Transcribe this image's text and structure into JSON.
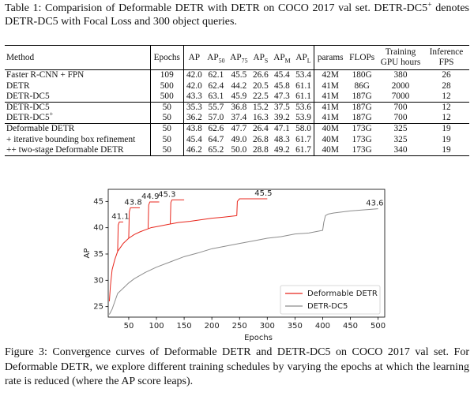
{
  "table_caption": {
    "before": "Table 1: Comparision of Deformable DETR with DETR on COCO 2017 val set.  DETR-DC5",
    "sup": "+",
    "after": " denotes DETR-DC5 with Focal Loss and 300 object queries."
  },
  "table": {
    "header": [
      "Method",
      "Epochs",
      "AP",
      {
        "text": "AP",
        "sub": "50"
      },
      {
        "text": "AP",
        "sub": "75"
      },
      {
        "text": "AP",
        "sub": "S"
      },
      {
        "text": "AP",
        "sub": "M"
      },
      {
        "text": "AP",
        "sub": "L"
      },
      "params",
      "FLOPs",
      "Training GPU hours",
      "Inference FPS"
    ],
    "groups": [
      [
        [
          "Faster R-CNN + FPN",
          "109",
          "42.0",
          "62.1",
          "45.5",
          "26.6",
          "45.4",
          "53.4",
          "42M",
          "180G",
          "380",
          "26"
        ],
        [
          "DETR",
          "500",
          "42.0",
          "62.4",
          "44.2",
          "20.5",
          "45.8",
          "61.1",
          "41M",
          "86G",
          "2000",
          "28"
        ],
        [
          "DETR-DC5",
          "500",
          "43.3",
          "63.1",
          "45.9",
          "22.5",
          "47.3",
          "61.1",
          "41M",
          "187G",
          "7000",
          "12"
        ]
      ],
      [
        [
          "DETR-DC5",
          "50",
          "35.3",
          "55.7",
          "36.8",
          "15.2",
          "37.5",
          "53.6",
          "41M",
          "187G",
          "700",
          "12"
        ],
        [
          {
            "text": "DETR-DC5",
            "sup": "+"
          },
          "50",
          "36.2",
          "57.0",
          "37.4",
          "16.3",
          "39.2",
          "53.9",
          "41M",
          "187G",
          "700",
          "12"
        ]
      ],
      [
        [
          "Deformable DETR",
          "50",
          "43.8",
          "62.6",
          "47.7",
          "26.4",
          "47.1",
          "58.0",
          "40M",
          "173G",
          "325",
          "19"
        ],
        [
          "+ iterative bounding box refinement",
          "50",
          "45.4",
          "64.7",
          "49.0",
          "26.8",
          "48.3",
          "61.7",
          "40M",
          "173G",
          "325",
          "19"
        ],
        [
          "++ two-stage Deformable DETR",
          "50",
          "46.2",
          "65.2",
          "50.0",
          "28.8",
          "49.2",
          "61.7",
          "40M",
          "173G",
          "340",
          "19"
        ]
      ]
    ]
  },
  "chart_data": {
    "type": "line",
    "xlabel": "Epochs",
    "ylabel": "AP",
    "xlim": [
      13,
      512
    ],
    "ylim": [
      23,
      47.3
    ],
    "xticks": [
      50,
      100,
      150,
      200,
      250,
      300,
      350,
      400,
      450,
      500
    ],
    "yticks": [
      25,
      30,
      35,
      40,
      45
    ],
    "legend": "lower right",
    "series": [
      {
        "name": "Deformable DETR",
        "color": "#e8261c",
        "x": [
          15,
          17,
          20,
          25,
          30,
          40,
          50,
          60,
          70,
          80,
          90,
          100,
          120,
          140,
          160,
          180,
          200,
          220,
          245,
          null,
          30,
          31,
          33,
          40,
          null,
          50,
          51,
          53,
          70,
          null,
          85,
          86,
          88,
          105,
          null,
          125,
          126,
          128,
          150,
          null,
          245,
          246,
          250,
          300
        ],
        "values": [
          26,
          29,
          32,
          34,
          35.5,
          37,
          38,
          38.7,
          39.2,
          39.6,
          40,
          40.2,
          40.6,
          41,
          41.2,
          41.5,
          41.8,
          42,
          42.3,
          null,
          35.5,
          40.5,
          41.1,
          41.1,
          null,
          38,
          43,
          43.8,
          43.8,
          null,
          39.9,
          44.3,
          44.9,
          44.9,
          null,
          40.7,
          44.8,
          45.3,
          45.3,
          null,
          42.3,
          45,
          45.5,
          45.5
        ]
      },
      {
        "name": "DETR-DC5",
        "color": "#8c8c8c",
        "x": [
          15,
          20,
          25,
          30,
          40,
          50,
          60,
          80,
          100,
          125,
          150,
          175,
          200,
          225,
          250,
          275,
          300,
          325,
          350,
          375,
          400,
          402,
          405,
          410,
          420,
          450,
          475,
          500
        ],
        "values": [
          23.5,
          24.5,
          26,
          27.5,
          28.5,
          29.5,
          30.3,
          31.5,
          32.5,
          33.5,
          34.5,
          35.2,
          36,
          36.5,
          37,
          37.5,
          38,
          38.3,
          38.8,
          39,
          39.5,
          41,
          42.3,
          42.6,
          42.8,
          43.2,
          43.4,
          43.6
        ]
      }
    ],
    "annotations": [
      {
        "x": 35,
        "value": 41.1
      },
      {
        "x": 58,
        "value": 43.8
      },
      {
        "x": 89,
        "value": 44.9
      },
      {
        "x": 119,
        "value": 45.3
      },
      {
        "x": 293,
        "value": 45.5
      },
      {
        "x": 494,
        "value": 43.6
      }
    ]
  },
  "figure_caption": "Figure 3: Convergence curves of Deformable DETR and DETR-DC5 on COCO 2017 val set. For Deformable DETR, we explore different training schedules by varying the epochs at which the learning rate is reduced (where the AP score leaps)."
}
